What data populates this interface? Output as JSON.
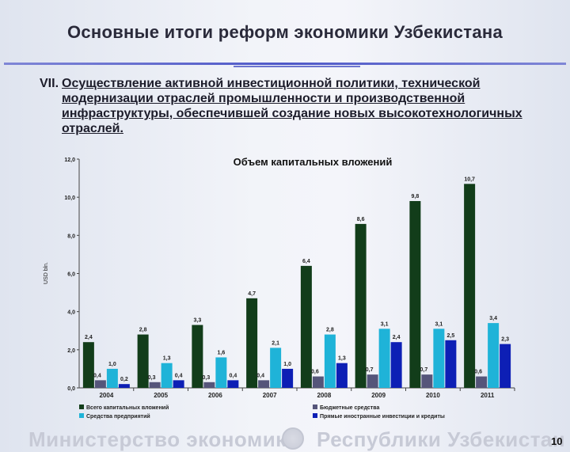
{
  "slide": {
    "title": "Основные итоги реформ экономики Узбекистана",
    "section_number": "VII.",
    "section_text": "Осуществление активной инвестиционной политики, технической модернизации отраслей промышленности и производственной инфраструктуры, обеспечившей создание новых высокотехнологичных отраслей.",
    "footer_left": "Министерство экономики",
    "footer_right": "Республики Узбекистан",
    "page_number": "10"
  },
  "chart_data": {
    "type": "bar",
    "title": "Объем капитальных вложений",
    "ylabel": "USD bln.",
    "xlabel": "",
    "ylim": [
      0,
      12
    ],
    "yticks": [
      "0,0",
      "2,0",
      "4,0",
      "6,0",
      "8,0",
      "10,0",
      "12,0"
    ],
    "grid": false,
    "legend_position": "bottom",
    "categories": [
      "2004",
      "2005",
      "2006",
      "2007",
      "2008",
      "2009",
      "2010",
      "2011"
    ],
    "series": [
      {
        "name": "Всего капитальных вложений",
        "color": "#123d1a",
        "values": [
          2.4,
          2.8,
          3.3,
          4.7,
          6.4,
          8.6,
          9.8,
          10.7
        ],
        "labels": [
          "2,4",
          "2,8",
          "3,3",
          "4,7",
          "6,4",
          "8,6",
          "9,8",
          "10,7"
        ]
      },
      {
        "name": "Бюджетные средства",
        "color": "#55557a",
        "values": [
          0.4,
          0.3,
          0.3,
          0.4,
          0.6,
          0.7,
          0.7,
          0.6
        ],
        "labels": [
          "0,4",
          "0,3",
          "0,3",
          "0,4",
          "0,6",
          "0,7",
          "0,7",
          "0,6"
        ]
      },
      {
        "name": "Средства предприятий",
        "color": "#1fb3d8",
        "values": [
          1.0,
          1.3,
          1.6,
          2.1,
          2.8,
          3.1,
          3.1,
          3.4
        ],
        "labels": [
          "1,0",
          "1,3",
          "1,6",
          "2,1",
          "2,8",
          "3,1",
          "3,1",
          "3,4"
        ]
      },
      {
        "name": "Прямые иностранные инвестиции и кредиты",
        "color": "#0d1fb5",
        "values": [
          0.2,
          0.4,
          0.4,
          1.0,
          1.3,
          2.4,
          2.5,
          2.3
        ],
        "labels": [
          "0,2",
          "0,4",
          "0,4",
          "1,0",
          "1,3",
          "2,4",
          "2,5",
          "2,3"
        ]
      }
    ]
  }
}
